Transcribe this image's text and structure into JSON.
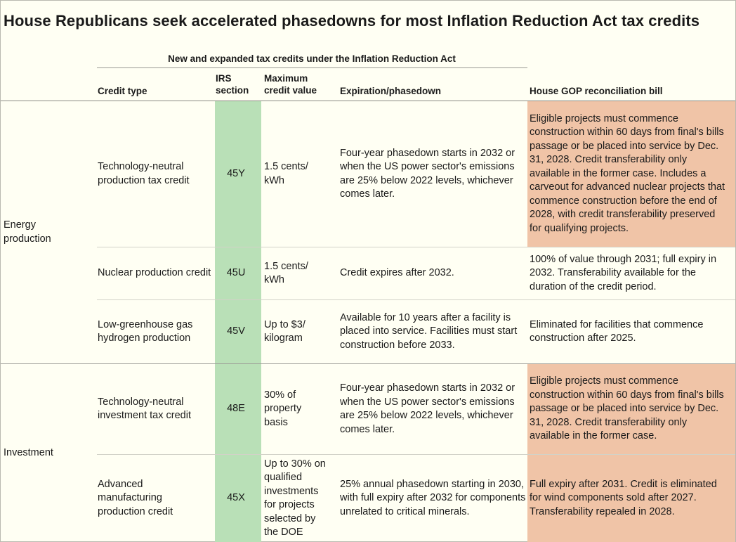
{
  "title": "House Republicans seek accelerated phasedowns for most Inflation Reduction Act tax credits",
  "subtitle": "New and expanded tax credits under the Inflation Reduction Act",
  "headers": {
    "credit_type": "Credit type",
    "irs_section_line1": "IRS",
    "irs_section_line2": "section",
    "max_value_line1": "Maximum",
    "max_value_line2": "credit value",
    "expiration": "Expiration/phasedown",
    "gop_bill": "House GOP reconciliation bill"
  },
  "highlight_color": "#f0c4a7",
  "irs_column_color": "#b9e0b7",
  "groups": [
    {
      "label": "Energy production",
      "rows": [
        {
          "credit_type": "Technology-neutral production tax credit",
          "irs_section": "45Y",
          "max_value": "1.5 cents/ kWh",
          "expiration": "Four-year phasedown starts in 2032 or when the US power sector's emissions are 25% below 2022 levels, whichever comes later.",
          "gop_bill": "Eligible projects must commence construction within 60 days from final's bills passage or be placed into service by Dec. 31, 2028. Credit transferability only available in the former case. Includes a carveout for advanced nuclear projects that commence construction before the end of 2028, with credit transferability preserved for qualifying projects.",
          "highlighted": true
        },
        {
          "credit_type": "Nuclear production credit",
          "irs_section": "45U",
          "max_value": "1.5 cents/ kWh",
          "expiration": "Credit expires after 2032.",
          "gop_bill": "100% of value through 2031; full expiry in 2032. Transferability available for the duration of the credit period.",
          "highlighted": false
        },
        {
          "credit_type": "Low-greenhouse gas hydrogen production",
          "irs_section": "45V",
          "max_value": "Up to $3/ kilogram",
          "expiration": "Available for 10 years after a facility is placed into service. Facilities must start construction before 2033.",
          "gop_bill": "Eliminated for facilities that commence construction after 2025.",
          "highlighted": false
        }
      ]
    },
    {
      "label": "Investment",
      "rows": [
        {
          "credit_type": "Technology-neutral investment tax credit",
          "irs_section": "48E",
          "max_value": "30% of property basis",
          "expiration": "Four-year phasedown starts in 2032 or when the US power sector's emissions are 25% below 2022 levels, whichever comes later.",
          "gop_bill": "Eligible projects must commence construction within 60 days from final's bills passage or be placed into service by Dec. 31, 2028. Credit transferability only available in the former case.",
          "highlighted": true
        },
        {
          "credit_type": "Advanced manufacturing production credit",
          "irs_section": "45X",
          "max_value": "Up to 30% on qualified investments for projects selected by the DOE",
          "expiration": "25% annual phasedown starting in 2030, with full expiry after 2032 for components unrelated to critical minerals.",
          "gop_bill": "Full expiry after 2031. Credit is eliminated for wind components sold after 2027. Transferability repealed in 2028.",
          "highlighted": true
        }
      ]
    }
  ]
}
